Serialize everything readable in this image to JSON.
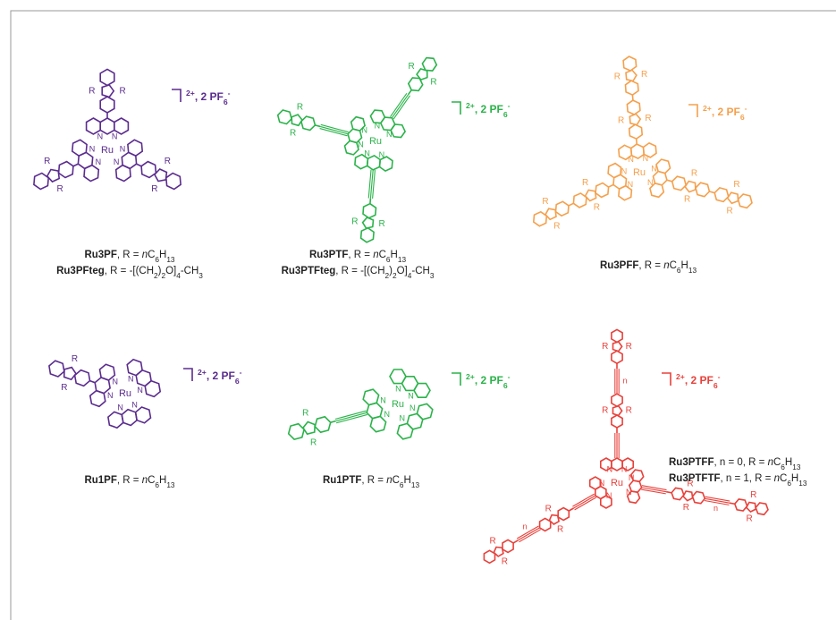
{
  "atom_labels": {
    "metal": "Ru",
    "nitrogen": "N",
    "substituent": "R",
    "repeat": "n"
  },
  "structures": [
    {
      "color": "#5b2c8f",
      "charge": [
        {
          "text": "2+",
          "style": "sup"
        },
        {
          "text": ", 2 PF",
          "style": "plain"
        },
        {
          "text": "6",
          "style": "sub"
        },
        {
          "text": "-",
          "style": "sup"
        }
      ],
      "captions": [
        [
          {
            "text": "Ru3PF",
            "style": "bold"
          },
          {
            "text": ", R = ",
            "style": "plain"
          },
          {
            "text": "n",
            "style": "italic"
          },
          {
            "text": "C",
            "style": "plain"
          },
          {
            "text": "6",
            "style": "sub"
          },
          {
            "text": "H",
            "style": "plain"
          },
          {
            "text": "13",
            "style": "sub"
          }
        ],
        [
          {
            "text": "Ru3PFteg",
            "style": "bold"
          },
          {
            "text": ", R = -[(CH",
            "style": "plain"
          },
          {
            "text": "2",
            "style": "sub"
          },
          {
            "text": ")",
            "style": "plain"
          },
          {
            "text": "2",
            "style": "sub"
          },
          {
            "text": "O]",
            "style": "plain"
          },
          {
            "text": "4",
            "style": "sub"
          },
          {
            "text": "-CH",
            "style": "plain"
          },
          {
            "text": "3",
            "style": "sub"
          }
        ]
      ]
    },
    {
      "color": "#2bb34a",
      "charge": [
        {
          "text": "2+",
          "style": "sup"
        },
        {
          "text": ", 2 PF",
          "style": "plain"
        },
        {
          "text": "6",
          "style": "sub"
        },
        {
          "text": "-",
          "style": "sup"
        }
      ],
      "captions": [
        [
          {
            "text": "Ru3PTF",
            "style": "bold"
          },
          {
            "text": ", R = ",
            "style": "plain"
          },
          {
            "text": "n",
            "style": "italic"
          },
          {
            "text": "C",
            "style": "plain"
          },
          {
            "text": "6",
            "style": "sub"
          },
          {
            "text": "H",
            "style": "plain"
          },
          {
            "text": "13",
            "style": "sub"
          }
        ],
        [
          {
            "text": "Ru3PTFteg",
            "style": "bold"
          },
          {
            "text": ", R = -[(CH",
            "style": "plain"
          },
          {
            "text": "2",
            "style": "sub"
          },
          {
            "text": ")",
            "style": "plain"
          },
          {
            "text": "2",
            "style": "sub"
          },
          {
            "text": "O]",
            "style": "plain"
          },
          {
            "text": "4",
            "style": "sub"
          },
          {
            "text": "-CH",
            "style": "plain"
          },
          {
            "text": "3",
            "style": "sub"
          }
        ]
      ]
    },
    {
      "color": "#f5a04c",
      "charge": [
        {
          "text": "2+",
          "style": "sup"
        },
        {
          "text": ", 2 PF",
          "style": "plain"
        },
        {
          "text": "6",
          "style": "sub"
        },
        {
          "text": "-",
          "style": "sup"
        }
      ],
      "captions": [
        [
          {
            "text": "Ru3PFF",
            "style": "bold"
          },
          {
            "text": ", R = ",
            "style": "plain"
          },
          {
            "text": "n",
            "style": "italic"
          },
          {
            "text": "C",
            "style": "plain"
          },
          {
            "text": "6",
            "style": "sub"
          },
          {
            "text": "H",
            "style": "plain"
          },
          {
            "text": "13",
            "style": "sub"
          }
        ]
      ]
    },
    {
      "color": "#5b2c8f",
      "charge": [
        {
          "text": "2+",
          "style": "sup"
        },
        {
          "text": ", 2 PF",
          "style": "plain"
        },
        {
          "text": "6",
          "style": "sub"
        },
        {
          "text": "-",
          "style": "sup"
        }
      ],
      "captions": [
        [
          {
            "text": "Ru1PF",
            "style": "bold"
          },
          {
            "text": ", R = ",
            "style": "plain"
          },
          {
            "text": "n",
            "style": "italic"
          },
          {
            "text": "C",
            "style": "plain"
          },
          {
            "text": "6",
            "style": "sub"
          },
          {
            "text": "H",
            "style": "plain"
          },
          {
            "text": "13",
            "style": "sub"
          }
        ]
      ]
    },
    {
      "color": "#2bb34a",
      "charge": [
        {
          "text": "2+",
          "style": "sup"
        },
        {
          "text": ", 2 PF",
          "style": "plain"
        },
        {
          "text": "6",
          "style": "sub"
        },
        {
          "text": "-",
          "style": "sup"
        }
      ],
      "captions": [
        [
          {
            "text": "Ru1PTF",
            "style": "bold"
          },
          {
            "text": ", R = ",
            "style": "plain"
          },
          {
            "text": "n",
            "style": "italic"
          },
          {
            "text": "C",
            "style": "plain"
          },
          {
            "text": "6",
            "style": "sub"
          },
          {
            "text": "H",
            "style": "plain"
          },
          {
            "text": "13",
            "style": "sub"
          }
        ]
      ]
    },
    {
      "color": "#e8413b",
      "charge": [
        {
          "text": "2+",
          "style": "sup"
        },
        {
          "text": ", 2 PF",
          "style": "plain"
        },
        {
          "text": "6",
          "style": "sub"
        },
        {
          "text": "-",
          "style": "sup"
        }
      ],
      "captions": [
        [
          {
            "text": "Ru3PTFF",
            "style": "bold"
          },
          {
            "text": ",   n = 0, R = ",
            "style": "plain"
          },
          {
            "text": "n",
            "style": "italic"
          },
          {
            "text": "C",
            "style": "plain"
          },
          {
            "text": "6",
            "style": "sub"
          },
          {
            "text": "H",
            "style": "plain"
          },
          {
            "text": "13",
            "style": "sub"
          }
        ],
        [
          {
            "text": "Ru3PTFTF",
            "style": "bold"
          },
          {
            "text": ", n = 1, R = ",
            "style": "plain"
          },
          {
            "text": "n",
            "style": "italic"
          },
          {
            "text": "C",
            "style": "plain"
          },
          {
            "text": "6",
            "style": "sub"
          },
          {
            "text": "H",
            "style": "plain"
          },
          {
            "text": "13",
            "style": "sub"
          }
        ]
      ]
    }
  ]
}
